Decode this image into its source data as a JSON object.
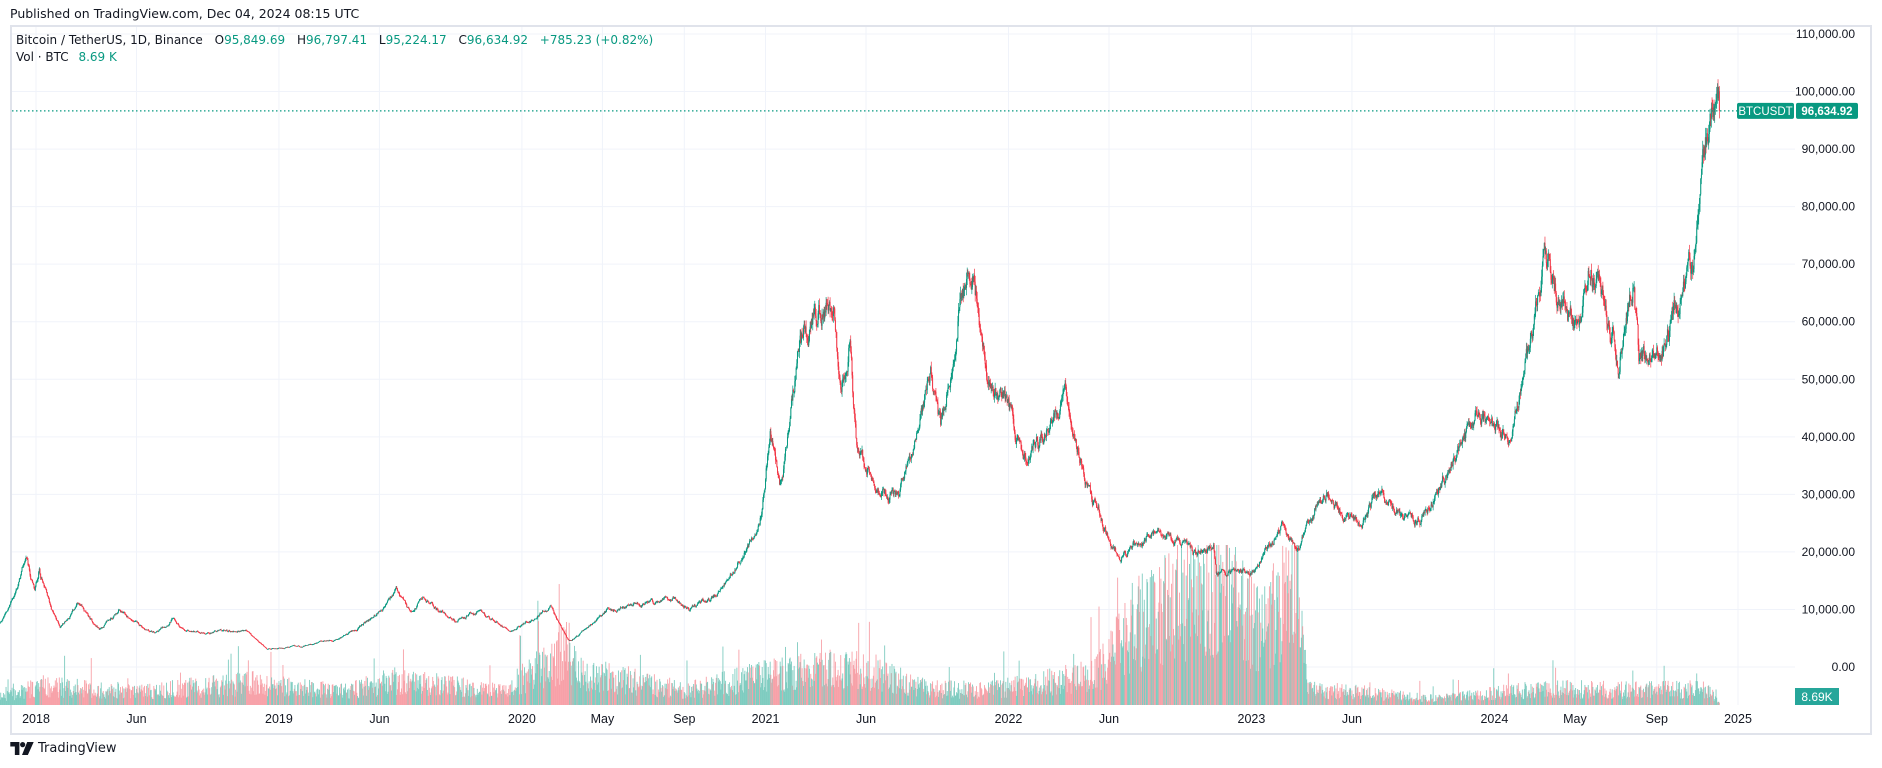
{
  "published": "Published on TradingView.com, Dec 04, 2024 08:15 UTC",
  "legend": {
    "symbol": "Bitcoin / TetherUS, 1D, Binance",
    "o_label": "O",
    "o": "95,849.69",
    "h_label": "H",
    "h": "96,797.41",
    "l_label": "L",
    "l": "95,224.17",
    "c_label": "C",
    "c": "96,634.92",
    "change": "+785.23 (+0.82%)",
    "vol_label": "Vol · BTC",
    "vol": "8.69 K"
  },
  "price_tag": {
    "symbol": "BTCUSDT",
    "value": "96,634.92"
  },
  "volume_tag": "8.69K",
  "footer": {
    "brand": "TradingView"
  },
  "colors": {
    "up": "#089981",
    "down": "#f23645",
    "up_vol": "#7fccc0",
    "down_vol": "#f7a1a8",
    "grid": "#f0f3fa",
    "tag": "#089981"
  },
  "chart_data": {
    "type": "candlestick",
    "title": "Bitcoin / TetherUS, 1D, Binance",
    "y_ticks": [
      "0.00",
      "10,000.00",
      "20,000.00",
      "30,000.00",
      "40,000.00",
      "50,000.00",
      "60,000.00",
      "70,000.00",
      "80,000.00",
      "90,000.00",
      "100,000.00",
      "110,000.00"
    ],
    "ylim": [
      0,
      110000
    ],
    "x_ticks": [
      {
        "label": "2018",
        "date": "2018-01-01"
      },
      {
        "label": "Jun",
        "date": "2018-06-01"
      },
      {
        "label": "2019",
        "date": "2019-01-01"
      },
      {
        "label": "Jun",
        "date": "2019-06-01"
      },
      {
        "label": "2020",
        "date": "2020-01-01"
      },
      {
        "label": "May",
        "date": "2020-05-01"
      },
      {
        "label": "Sep",
        "date": "2020-09-01"
      },
      {
        "label": "2021",
        "date": "2021-01-01"
      },
      {
        "label": "Jun",
        "date": "2021-06-01"
      },
      {
        "label": "2022",
        "date": "2022-01-01"
      },
      {
        "label": "Jun",
        "date": "2022-06-01"
      },
      {
        "label": "2023",
        "date": "2023-01-01"
      },
      {
        "label": "Jun",
        "date": "2023-06-01"
      },
      {
        "label": "2024",
        "date": "2024-01-01"
      },
      {
        "label": "May",
        "date": "2024-05-01"
      },
      {
        "label": "Sep",
        "date": "2024-09-01"
      },
      {
        "label": "2025",
        "date": "2025-01-01"
      }
    ],
    "last_close": 96634.92,
    "price_path": [
      [
        "2017-11-06",
        7300
      ],
      [
        "2017-12-17",
        19000
      ],
      [
        "2017-12-30",
        13000
      ],
      [
        "2018-01-06",
        17000
      ],
      [
        "2018-02-06",
        7000
      ],
      [
        "2018-03-05",
        11000
      ],
      [
        "2018-04-06",
        6600
      ],
      [
        "2018-05-05",
        9800
      ],
      [
        "2018-06-29",
        5800
      ],
      [
        "2018-07-25",
        8400
      ],
      [
        "2018-08-14",
        6000
      ],
      [
        "2018-11-13",
        6300
      ],
      [
        "2018-12-15",
        3200
      ],
      [
        "2019-02-08",
        3600
      ],
      [
        "2019-04-02",
        5000
      ],
      [
        "2019-05-15",
        8000
      ],
      [
        "2019-06-26",
        13000
      ],
      [
        "2019-07-17",
        9500
      ],
      [
        "2019-08-06",
        12000
      ],
      [
        "2019-09-24",
        8000
      ],
      [
        "2019-10-26",
        9500
      ],
      [
        "2019-12-18",
        6600
      ],
      [
        "2020-02-13",
        10400
      ],
      [
        "2020-03-12",
        4800
      ],
      [
        "2020-03-16",
        5000
      ],
      [
        "2020-05-08",
        9900
      ],
      [
        "2020-07-26",
        11000
      ],
      [
        "2020-08-17",
        12400
      ],
      [
        "2020-09-08",
        10000
      ],
      [
        "2020-10-21",
        12900
      ],
      [
        "2020-11-25",
        19000
      ],
      [
        "2020-12-27",
        28000
      ],
      [
        "2021-01-08",
        41000
      ],
      [
        "2021-01-22",
        31000
      ],
      [
        "2021-02-21",
        57000
      ],
      [
        "2021-03-13",
        61000
      ],
      [
        "2021-04-14",
        63500
      ],
      [
        "2021-04-25",
        48000
      ],
      [
        "2021-05-08",
        58000
      ],
      [
        "2021-05-19",
        37000
      ],
      [
        "2021-06-22",
        31000
      ],
      [
        "2021-07-20",
        30000
      ],
      [
        "2021-09-06",
        52000
      ],
      [
        "2021-09-21",
        41000
      ],
      [
        "2021-10-20",
        66000
      ],
      [
        "2021-11-10",
        68000
      ],
      [
        "2021-12-04",
        49000
      ],
      [
        "2021-12-31",
        46000
      ],
      [
        "2022-01-24",
        35000
      ],
      [
        "2022-03-28",
        47500
      ],
      [
        "2022-05-12",
        28000
      ],
      [
        "2022-06-18",
        19000
      ],
      [
        "2022-08-14",
        24500
      ],
      [
        "2022-10-10",
        19200
      ],
      [
        "2022-11-05",
        21200
      ],
      [
        "2022-11-09",
        16500
      ],
      [
        "2022-12-31",
        16500
      ],
      [
        "2023-02-16",
        24500
      ],
      [
        "2023-03-10",
        20000
      ],
      [
        "2023-04-14",
        30500
      ],
      [
        "2023-06-15",
        25200
      ],
      [
        "2023-07-13",
        31000
      ],
      [
        "2023-08-17",
        26000
      ],
      [
        "2023-09-11",
        25500
      ],
      [
        "2023-10-24",
        34500
      ],
      [
        "2023-12-08",
        44000
      ],
      [
        "2024-01-23",
        39500
      ],
      [
        "2024-03-14",
        72000
      ],
      [
        "2024-05-01",
        58000
      ],
      [
        "2024-05-21",
        70500
      ],
      [
        "2024-07-05",
        55000
      ],
      [
        "2024-07-29",
        68000
      ],
      [
        "2024-08-05",
        53000
      ],
      [
        "2024-09-06",
        54000
      ],
      [
        "2024-10-29",
        72000
      ],
      [
        "2024-11-12",
        88000
      ],
      [
        "2024-11-22",
        98500
      ],
      [
        "2024-12-04",
        96634.92
      ]
    ],
    "volume_path_kbtc": [
      [
        "2017-11-06",
        30
      ],
      [
        "2018-01-10",
        70
      ],
      [
        "2018-06-01",
        50
      ],
      [
        "2018-11-20",
        80
      ],
      [
        "2019-04-01",
        50
      ],
      [
        "2019-06-26",
        90
      ],
      [
        "2019-12-01",
        50
      ],
      [
        "2020-03-12",
        200
      ],
      [
        "2020-04-01",
        120
      ],
      [
        "2020-09-01",
        55
      ],
      [
        "2021-01-10",
        110
      ],
      [
        "2021-05-19",
        140
      ],
      [
        "2021-09-01",
        60
      ],
      [
        "2021-12-01",
        55
      ],
      [
        "2022-05-12",
        110
      ],
      [
        "2022-07-10",
        300
      ],
      [
        "2022-11-10",
        440
      ],
      [
        "2023-01-15",
        280
      ],
      [
        "2023-03-15",
        480
      ],
      [
        "2023-03-25",
        60
      ],
      [
        "2023-10-01",
        25
      ],
      [
        "2024-03-14",
        60
      ],
      [
        "2024-08-05",
        55
      ],
      [
        "2024-11-15",
        60
      ],
      [
        "2024-12-04",
        8.69
      ]
    ],
    "volume_max_kbtc": 560
  }
}
